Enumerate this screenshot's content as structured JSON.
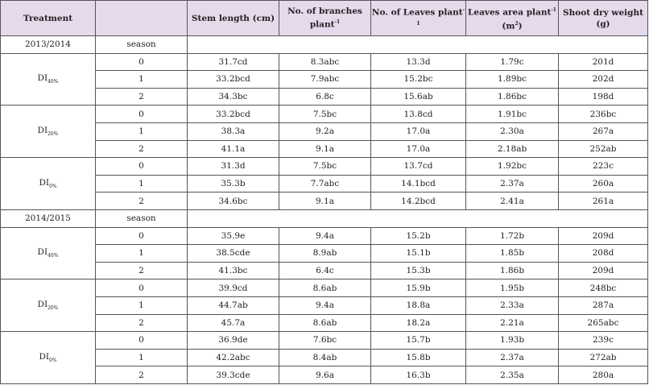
{
  "header": {
    "treatment": "Treatment",
    "blank": "",
    "stem": "Stem length (cm)",
    "branches": "No. of branches plant",
    "branches_sup": "-1",
    "leaves": "No. of Leaves plant",
    "leaves_sup": "-1",
    "area": "Leaves area plant",
    "area_sup": "-1",
    "area_unit": " (m",
    "area_unit_sup": "2",
    "area_close": ")",
    "shoot": "Shoot dry weight (g)"
  },
  "seasons": [
    {
      "year": "2013/2014",
      "label": "season",
      "groups": [
        {
          "name": "DI",
          "sub": "40%",
          "rows": [
            [
              "0",
              "31.7cd",
              "8.3abc",
              "13.3d",
              "1.79c",
              "201d"
            ],
            [
              "1",
              "33.2bcd",
              "7.9abc",
              "15.2bc",
              "1.89bc",
              "202d"
            ],
            [
              "2",
              "34.3bc",
              "6.8c",
              "15.6ab",
              "1.86bc",
              "198d"
            ]
          ]
        },
        {
          "name": "DI",
          "sub": "20%",
          "rows": [
            [
              "0",
              "33.2bcd",
              "7.5bc",
              "13.8cd",
              "1.91bc",
              "236bc"
            ],
            [
              "1",
              "38.3a",
              "9.2a",
              "17.0a",
              "2.30a",
              "267a"
            ],
            [
              "2",
              "41.1a",
              "9.1a",
              "17.0a",
              "2.18ab",
              "252ab"
            ]
          ]
        },
        {
          "name": "DI",
          "sub": "0%",
          "rows": [
            [
              "0",
              "31.3d",
              "7.5bc",
              "13.7cd",
              "1.92bc",
              "223c"
            ],
            [
              "1",
              "35.3b",
              "7.7abc",
              "14.1bcd",
              "2.37a",
              "260a"
            ],
            [
              "2",
              "34.6bc",
              "9.1a",
              "14.2bcd",
              "2.41a",
              "261a"
            ]
          ]
        }
      ]
    },
    {
      "year": "2014/2015",
      "label": "season",
      "groups": [
        {
          "name": "DI",
          "sub": "40%",
          "rows": [
            [
              "0",
              "35.9e",
              "9.4a",
              "15.2b",
              "1.72b",
              "209d"
            ],
            [
              "1",
              "38.5cde",
              "8.9ab",
              "15.1b",
              "1.85b",
              "208d"
            ],
            [
              "2",
              "41.3bc",
              "6.4c",
              "15.3b",
              "1.86b",
              "209d"
            ]
          ]
        },
        {
          "name": "DI",
          "sub": "20%",
          "rows": [
            [
              "0",
              "39.9cd",
              "8.6ab",
              "15.9b",
              "1.95b",
              "248bc"
            ],
            [
              "1",
              "44.7ab",
              "9.4a",
              "18.8a",
              "2.33a",
              "287a"
            ],
            [
              "2",
              "45.7a",
              "8.6ab",
              "18.2a",
              "2.21a",
              "265abc"
            ]
          ]
        },
        {
          "name": "DI",
          "sub": "0%",
          "rows": [
            [
              "0",
              "36.9de",
              "7.6bc",
              "15.7b",
              "1.93b",
              "239c"
            ],
            [
              "1",
              "42.2abc",
              "8.4ab",
              "15.8b",
              "2.37a",
              "272ab"
            ],
            [
              "2",
              "39.3cde",
              "9.6a",
              "16.3b",
              "2.35a",
              "280a"
            ]
          ]
        }
      ]
    }
  ],
  "colors": {
    "header_bg": "#e6d9ec",
    "border": "#555555"
  }
}
